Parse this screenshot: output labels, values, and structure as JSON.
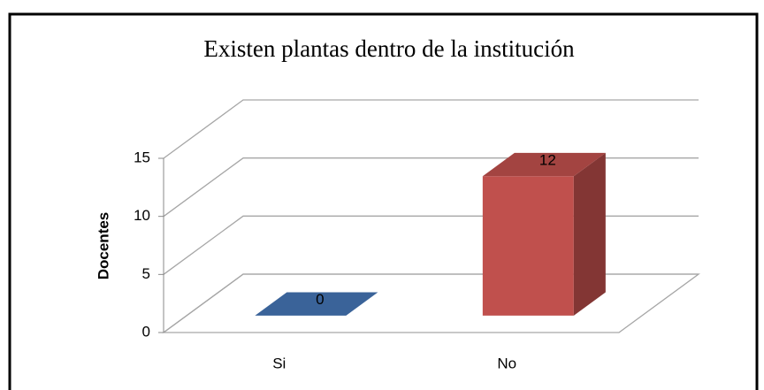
{
  "chart_data": {
    "type": "bar3d",
    "title": "Existen plantas dentro de la institución",
    "y_axis_label": "Docentes",
    "categories": [
      "Si",
      "No"
    ],
    "values": [
      0,
      12
    ],
    "colors": [
      "#3a6399",
      "#c0504d"
    ],
    "ylim": [
      0,
      15
    ],
    "yticks": [
      0,
      5,
      10,
      15
    ],
    "grid": true
  }
}
